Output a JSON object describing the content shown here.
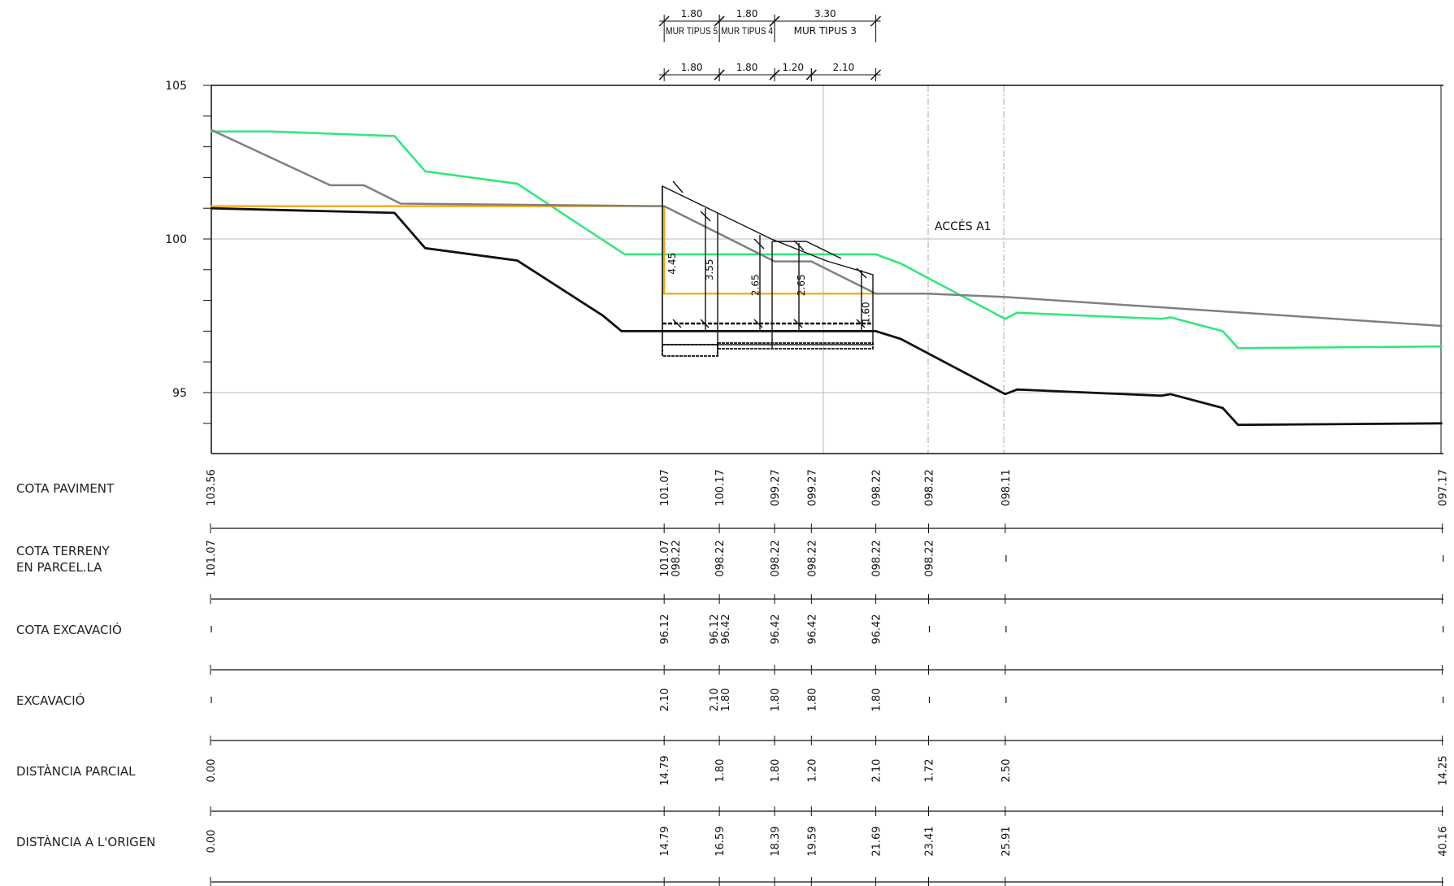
{
  "y_axis": {
    "ticks": [
      "105",
      "100",
      "95"
    ],
    "values": [
      105,
      100,
      95
    ]
  },
  "annotation": "ACCÉS A1",
  "top_dims": {
    "upper": [
      {
        "value": "1.80",
        "label": "MUR TIPUS 5",
        "x0": 14.79,
        "x1": 16.59
      },
      {
        "value": "1.80",
        "label": "MUR TIPUS 4",
        "x0": 16.59,
        "x1": 18.39
      },
      {
        "value": "3.30",
        "label": "MUR TIPUS 3",
        "x0": 18.39,
        "x1": 21.69
      }
    ],
    "lower": [
      {
        "value": "1.80",
        "x0": 14.79,
        "x1": 16.59
      },
      {
        "value": "1.80",
        "x0": 16.59,
        "x1": 18.39
      },
      {
        "value": "1.20",
        "x0": 18.39,
        "x1": 19.59
      },
      {
        "value": "2.10",
        "x0": 19.59,
        "x1": 21.69
      }
    ]
  },
  "wall_heights": [
    {
      "label": "4.45",
      "x": 14.79,
      "y": 99.2
    },
    {
      "label": "3.55",
      "x": 16.0,
      "y": 99.0
    },
    {
      "label": "2.65",
      "x": 17.5,
      "y": 98.5
    },
    {
      "label": "2.65",
      "x": 19.0,
      "y": 98.5
    },
    {
      "label": "1.60",
      "x": 21.1,
      "y": 97.6
    }
  ],
  "rows": [
    {
      "label": [
        "COTA PAVIMENT"
      ],
      "values": [
        {
          "x": 0.0,
          "text": "103.56"
        },
        {
          "x": 14.79,
          "text": "101.07"
        },
        {
          "x": 16.59,
          "text": "100.17"
        },
        {
          "x": 18.39,
          "text": "099.27"
        },
        {
          "x": 19.59,
          "text": "099.27"
        },
        {
          "x": 21.69,
          "text": "098.22"
        },
        {
          "x": 23.41,
          "text": "098.22"
        },
        {
          "x": 25.91,
          "text": "098.11"
        },
        {
          "x": 40.16,
          "text": "097.17"
        }
      ]
    },
    {
      "label": [
        "COTA TERRENY",
        "EN PARCEL.LA"
      ],
      "values": [
        {
          "x": 0.0,
          "text": "101.07"
        },
        {
          "x": 14.79,
          "text": "101.07"
        },
        {
          "x": 14.79,
          "text": "098.22",
          "off": 14
        },
        {
          "x": 16.59,
          "text": "098.22"
        },
        {
          "x": 18.39,
          "text": "098.22"
        },
        {
          "x": 19.59,
          "text": "098.22"
        },
        {
          "x": 21.69,
          "text": "098.22"
        },
        {
          "x": 23.41,
          "text": "098.22"
        },
        {
          "x": 25.91,
          "text": "-"
        },
        {
          "x": 40.16,
          "text": "-"
        }
      ]
    },
    {
      "label": [
        "COTA EXCAVACIÓ"
      ],
      "values": [
        {
          "x": 0.0,
          "text": "-"
        },
        {
          "x": 14.79,
          "text": "96.12"
        },
        {
          "x": 16.59,
          "text": "96.12",
          "off": -7
        },
        {
          "x": 16.59,
          "text": "96.42",
          "off": 7
        },
        {
          "x": 18.39,
          "text": "96.42"
        },
        {
          "x": 19.59,
          "text": "96.42"
        },
        {
          "x": 21.69,
          "text": "96.42"
        },
        {
          "x": 23.41,
          "text": "-"
        },
        {
          "x": 25.91,
          "text": "-"
        },
        {
          "x": 40.16,
          "text": "-"
        }
      ]
    },
    {
      "label": [
        "EXCAVACIÓ"
      ],
      "values": [
        {
          "x": 0.0,
          "text": "-"
        },
        {
          "x": 14.79,
          "text": "2.10"
        },
        {
          "x": 16.59,
          "text": "2.10",
          "off": -7
        },
        {
          "x": 16.59,
          "text": "1.80",
          "off": 7
        },
        {
          "x": 18.39,
          "text": "1.80"
        },
        {
          "x": 19.59,
          "text": "1.80"
        },
        {
          "x": 21.69,
          "text": "1.80"
        },
        {
          "x": 23.41,
          "text": "-"
        },
        {
          "x": 25.91,
          "text": "-"
        },
        {
          "x": 40.16,
          "text": "-"
        }
      ]
    },
    {
      "label": [
        "DISTÀNCIA PARCIAL"
      ],
      "values": [
        {
          "x": 0.0,
          "text": "0.00"
        },
        {
          "x": 14.79,
          "text": "14.79"
        },
        {
          "x": 16.59,
          "text": "1.80"
        },
        {
          "x": 18.39,
          "text": "1.80"
        },
        {
          "x": 19.59,
          "text": "1.20"
        },
        {
          "x": 21.69,
          "text": "2.10"
        },
        {
          "x": 23.41,
          "text": "1.72"
        },
        {
          "x": 25.91,
          "text": "2.50"
        },
        {
          "x": 40.16,
          "text": "14.25"
        }
      ]
    },
    {
      "label": [
        "DISTÀNCIA A L'ORIGEN"
      ],
      "values": [
        {
          "x": 0.0,
          "text": "0.00"
        },
        {
          "x": 14.79,
          "text": "14.79"
        },
        {
          "x": 16.59,
          "text": "16.59"
        },
        {
          "x": 18.39,
          "text": "18.39"
        },
        {
          "x": 19.59,
          "text": "19.59"
        },
        {
          "x": 21.69,
          "text": "21.69"
        },
        {
          "x": 23.41,
          "text": "23.41"
        },
        {
          "x": 25.91,
          "text": "25.91"
        },
        {
          "x": 40.16,
          "text": "40.16"
        }
      ]
    }
  ],
  "profiles": {
    "pavement": [
      [
        0,
        103.56
      ],
      [
        3.9,
        101.75
      ],
      [
        5.0,
        101.75
      ],
      [
        6.2,
        101.15
      ],
      [
        14.79,
        101.07
      ],
      [
        16.59,
        100.17
      ],
      [
        18.39,
        99.27
      ],
      [
        19.59,
        99.27
      ],
      [
        21.69,
        98.22
      ],
      [
        23.41,
        98.22
      ],
      [
        25.91,
        98.11
      ],
      [
        40.16,
        97.17
      ]
    ],
    "green": [
      [
        0,
        103.5
      ],
      [
        2.0,
        103.5
      ],
      [
        6.0,
        103.35
      ],
      [
        7.0,
        102.2
      ],
      [
        10.0,
        101.8
      ],
      [
        13.5,
        99.5
      ],
      [
        21.69,
        99.5
      ],
      [
        22.5,
        99.2
      ],
      [
        25.91,
        97.4
      ],
      [
        26.3,
        97.6
      ],
      [
        31.0,
        97.4
      ],
      [
        31.3,
        97.45
      ],
      [
        33.0,
        97.0
      ],
      [
        33.5,
        96.45
      ],
      [
        40.16,
        96.5
      ]
    ],
    "orange": [
      [
        0,
        101.07
      ],
      [
        14.79,
        101.07
      ],
      [
        14.79,
        98.22
      ],
      [
        21.69,
        98.22
      ],
      [
        23.41,
        98.22
      ]
    ],
    "black": [
      [
        0,
        101.0
      ],
      [
        6.0,
        100.85
      ],
      [
        7.0,
        99.7
      ],
      [
        10.0,
        99.3
      ],
      [
        12.8,
        97.5
      ],
      [
        13.4,
        97.0
      ],
      [
        21.69,
        97.0
      ],
      [
        22.5,
        96.75
      ],
      [
        25.91,
        94.95
      ],
      [
        26.3,
        95.1
      ],
      [
        31.0,
        94.9
      ],
      [
        31.3,
        94.95
      ],
      [
        33.0,
        94.5
      ],
      [
        33.5,
        93.95
      ],
      [
        40.16,
        94.0
      ]
    ]
  },
  "colors": {
    "pavement": "#808080",
    "green": "#2ee87a",
    "orange": "#f0a800",
    "black": "#111111",
    "grid": "#b8b8b8"
  }
}
